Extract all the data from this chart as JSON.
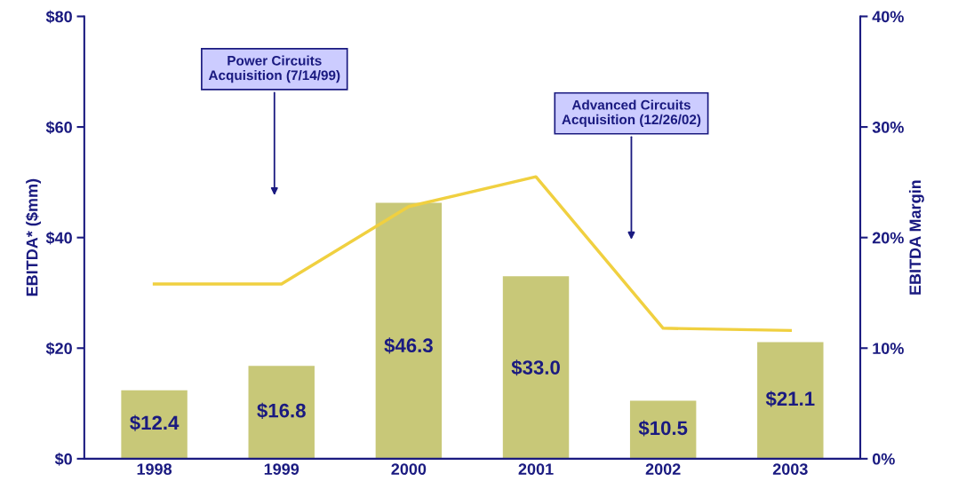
{
  "chart_data": {
    "type": "bar",
    "categories": [
      "1998",
      "1999",
      "2000",
      "2001",
      "2002",
      "2003"
    ],
    "ylabel": "EBITDA* ($mm)",
    "y2label": "EBITDA Margin",
    "series": [
      {
        "color": "#c8c878",
        "values": [
          12.4,
          16.8,
          46.3,
          33.0,
          10.5,
          21.1
        ],
        "value_labels": [
          "$12.4",
          "$16.8",
          "$46.3",
          "$33.0",
          "$10.5",
          "$21.1"
        ]
      },
      {
        "type": "line",
        "axis": "y2",
        "color": "#f0d040",
        "values": [
          15.8,
          15.8,
          22.8,
          25.5,
          11.8,
          11.6
        ]
      }
    ],
    "ylim": [
      0,
      80
    ],
    "yticks": [
      {
        "value": 0,
        "label": "$0"
      },
      {
        "value": 20,
        "label": "$20"
      },
      {
        "value": 40,
        "label": "$40"
      },
      {
        "value": 60,
        "label": "$60"
      },
      {
        "value": 80,
        "label": "$80"
      }
    ],
    "y2lim": [
      0,
      40
    ],
    "y2ticks": [
      {
        "value": 0,
        "label": "0%"
      },
      {
        "value": 10,
        "label": "10%"
      },
      {
        "value": 20,
        "label": "20%"
      },
      {
        "value": 30,
        "label": "30%"
      },
      {
        "value": 40,
        "label": "40%"
      }
    ],
    "annotations": [
      "Power Circuits\nAcquisition (7/14/99)",
      "Advanced Circuits\nAcquisition (12/26/02)"
    ],
    "grid": false,
    "legend": false,
    "line_style": "solid",
    "marker": "none"
  }
}
